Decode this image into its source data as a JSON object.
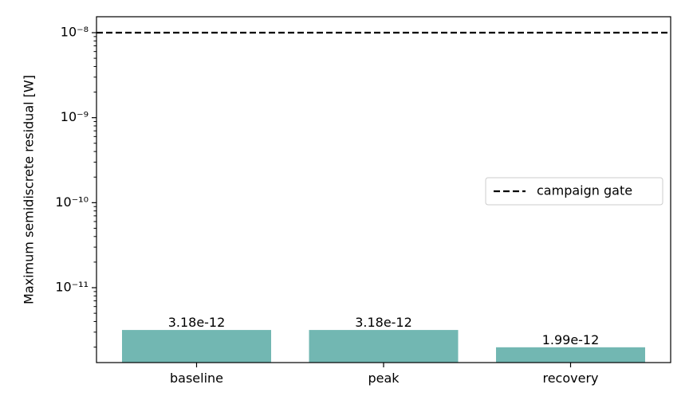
{
  "chart_data": {
    "type": "bar",
    "y_label": "Maximum semidiscrete residual [W]",
    "categories": [
      "baseline",
      "peak",
      "recovery"
    ],
    "values": [
      3.18e-12,
      3.18e-12,
      1.99e-12
    ],
    "color": "#72b7b2",
    "y_scale": "log",
    "ylim": [
      1.315e-12,
      1.54e-08
    ],
    "yticks": [
      {
        "value": 1e-11,
        "label": "10⁻¹¹"
      },
      {
        "value": 1e-10,
        "label": "10⁻¹⁰"
      },
      {
        "value": 1e-09,
        "label": "10⁻⁹"
      },
      {
        "value": 1e-08,
        "label": "10⁻⁸"
      }
    ],
    "reference_lines": [
      {
        "name": "campaign gate",
        "value": 1e-08,
        "color": "#000000",
        "style": "dashed"
      }
    ],
    "legend": "center right"
  }
}
